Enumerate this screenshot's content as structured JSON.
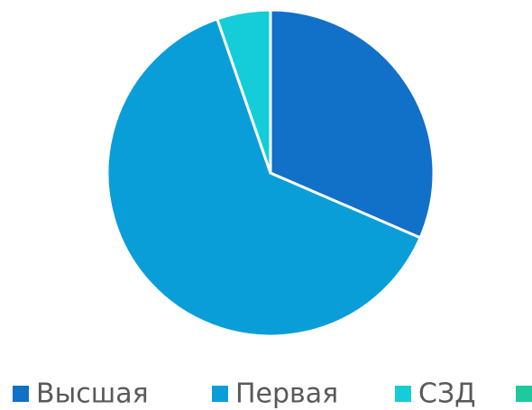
{
  "chart_data": {
    "type": "pie",
    "categories": [
      "Высшая",
      "Первая",
      "СЗД",
      null
    ],
    "values": [
      31.5,
      63.2,
      5.3,
      0
    ],
    "colors": [
      "#1170c8",
      "#0a9ed9",
      "#14cdd8",
      "#1ec99e"
    ],
    "legend": "bottom"
  }
}
